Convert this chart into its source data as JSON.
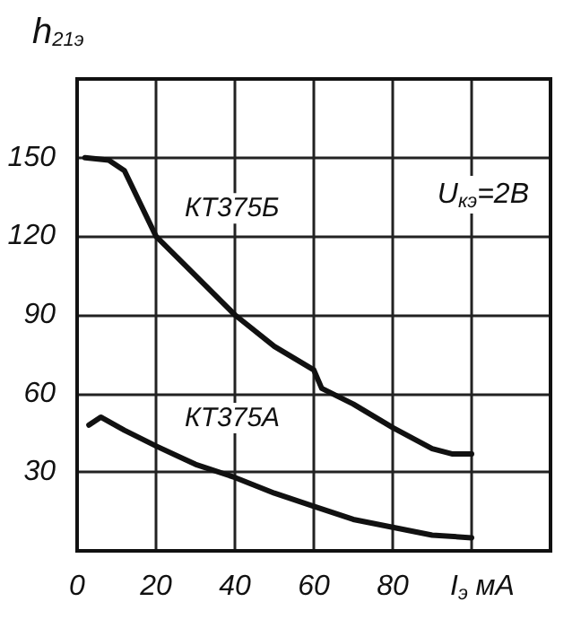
{
  "chart_data": {
    "type": "line",
    "ylabel": "h$_{21э}$",
    "xlabel": "I$_{э}$ мА",
    "annotations": [
      "U$_{кэ}$=2В"
    ],
    "xlim": [
      0,
      120
    ],
    "xticks": [
      {
        "value": 0,
        "label": "0"
      },
      20,
      40,
      60,
      80,
      {
        "value": 100,
        "label": null
      },
      {
        "value": 120,
        "label": null
      }
    ],
    "ylim": [
      0,
      180
    ],
    "yticks": [
      {
        "value": 0,
        "label": null
      },
      30,
      60,
      90,
      120,
      150,
      {
        "value": 180,
        "label": null
      }
    ],
    "grid": true,
    "marker": "none",
    "line_style": "solid",
    "legend": false,
    "series": [
      {
        "name": "КТ375Б",
        "color": "#111111",
        "x": [
          2,
          8,
          12,
          20,
          30,
          40,
          50,
          60,
          62,
          70,
          80,
          90,
          95,
          100
        ],
        "values": [
          150,
          149,
          145,
          120,
          105,
          90,
          78,
          69,
          62,
          56,
          47,
          39,
          37,
          37
        ]
      },
      {
        "name": "КТ375А",
        "color": "#111111",
        "x": [
          3,
          6,
          12,
          20,
          30,
          40,
          50,
          60,
          70,
          80,
          90,
          100
        ],
        "values": [
          48,
          51,
          46,
          40,
          33,
          28,
          22,
          17,
          12,
          9,
          6,
          5
        ]
      }
    ]
  }
}
